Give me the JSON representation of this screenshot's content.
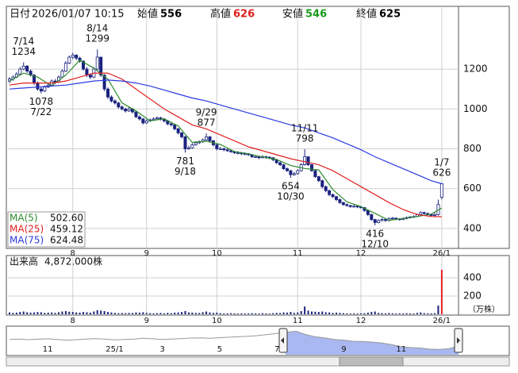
{
  "header": {
    "date_label": "日付",
    "date": "2026/01/07 10:15",
    "fields": [
      {
        "label": "始値",
        "value": 556,
        "color": "#000000"
      },
      {
        "label": "高値",
        "value": 626,
        "color": "#e02020"
      },
      {
        "label": "安値",
        "value": 546,
        "color": "#1a9a1a"
      },
      {
        "label": "終値",
        "value": 625,
        "color": "#000000"
      }
    ]
  },
  "chart_data": {
    "type": "candlestick",
    "categories": [
      null,
      null,
      null,
      null,
      null,
      null,
      null,
      null,
      null,
      null,
      null,
      null,
      null,
      null,
      null,
      null,
      null,
      null,
      "8",
      null,
      null,
      null,
      null,
      null,
      null,
      null,
      null,
      null,
      null,
      null,
      null,
      null,
      null,
      null,
      null,
      null,
      null,
      null,
      null,
      "9",
      null,
      null,
      null,
      null,
      null,
      null,
      null,
      null,
      null,
      null,
      null,
      null,
      null,
      null,
      null,
      null,
      null,
      null,
      null,
      "10",
      null,
      null,
      null,
      null,
      null,
      null,
      null,
      null,
      null,
      null,
      null,
      null,
      null,
      null,
      null,
      null,
      null,
      null,
      null,
      null,
      null,
      null,
      "11",
      null,
      null,
      null,
      null,
      null,
      null,
      null,
      null,
      null,
      null,
      null,
      null,
      null,
      null,
      null,
      null,
      null,
      "12",
      null,
      null,
      null,
      null,
      null,
      null,
      null,
      null,
      null,
      null,
      null,
      null,
      null,
      null,
      null,
      null,
      null,
      null,
      null,
      null,
      null,
      null,
      "26/1"
    ],
    "ohlc": [
      [
        1140,
        1160,
        1130,
        1150
      ],
      [
        1150,
        1168,
        1142,
        1160
      ],
      [
        1160,
        1185,
        1155,
        1175
      ],
      [
        1175,
        1210,
        1170,
        1200
      ],
      [
        1200,
        1234,
        1195,
        1215
      ],
      [
        1215,
        1220,
        1180,
        1190
      ],
      [
        1190,
        1198,
        1162,
        1170
      ],
      [
        1170,
        1175,
        1120,
        1130
      ],
      [
        1130,
        1138,
        1092,
        1100
      ],
      [
        1100,
        1112,
        1078,
        1090
      ],
      [
        1090,
        1118,
        1085,
        1110
      ],
      [
        1110,
        1130,
        1105,
        1120
      ],
      [
        1120,
        1148,
        1115,
        1140
      ],
      [
        1140,
        1150,
        1128,
        1135
      ],
      [
        1135,
        1168,
        1130,
        1160
      ],
      [
        1160,
        1198,
        1155,
        1190
      ],
      [
        1190,
        1240,
        1185,
        1230
      ],
      [
        1230,
        1268,
        1225,
        1260
      ],
      [
        1260,
        1282,
        1250,
        1270
      ],
      [
        1270,
        1275,
        1245,
        1255
      ],
      [
        1255,
        1262,
        1232,
        1240
      ],
      [
        1240,
        1245,
        1192,
        1200
      ],
      [
        1200,
        1210,
        1160,
        1170
      ],
      [
        1170,
        1178,
        1150,
        1160
      ],
      [
        1160,
        1210,
        1155,
        1200
      ],
      [
        1200,
        1299,
        1195,
        1260
      ],
      [
        1260,
        1262,
        1160,
        1170
      ],
      [
        1170,
        1175,
        1090,
        1100
      ],
      [
        1100,
        1108,
        1050,
        1060
      ],
      [
        1060,
        1068,
        1032,
        1040
      ],
      [
        1040,
        1048,
        1022,
        1030
      ],
      [
        1030,
        1035,
        1002,
        1010
      ],
      [
        1010,
        1018,
        992,
        1000
      ],
      [
        1000,
        1005,
        982,
        990
      ],
      [
        990,
        1012,
        985,
        1000
      ],
      [
        1000,
        1004,
        978,
        985
      ],
      [
        985,
        990,
        955,
        960
      ],
      [
        960,
        968,
        942,
        950
      ],
      [
        950,
        955,
        922,
        930
      ],
      [
        930,
        948,
        925,
        940
      ],
      [
        940,
        952,
        935,
        945
      ],
      [
        945,
        958,
        940,
        950
      ],
      [
        950,
        962,
        945,
        955
      ],
      [
        955,
        960,
        942,
        950
      ],
      [
        950,
        954,
        932,
        940
      ],
      [
        940,
        945,
        918,
        925
      ],
      [
        925,
        932,
        912,
        920
      ],
      [
        920,
        925,
        893,
        900
      ],
      [
        900,
        905,
        872,
        880
      ],
      [
        880,
        884,
        852,
        860
      ],
      [
        860,
        865,
        781,
        800
      ],
      [
        800,
        815,
        795,
        805
      ],
      [
        805,
        828,
        800,
        820
      ],
      [
        820,
        838,
        815,
        830
      ],
      [
        830,
        842,
        825,
        835
      ],
      [
        835,
        852,
        830,
        845
      ],
      [
        845,
        877,
        840,
        860
      ],
      [
        860,
        864,
        832,
        840
      ],
      [
        840,
        845,
        812,
        820
      ],
      [
        820,
        824,
        792,
        800
      ],
      [
        800,
        810,
        794,
        800
      ],
      [
        800,
        806,
        788,
        795
      ],
      [
        795,
        800,
        784,
        790
      ],
      [
        790,
        796,
        780,
        785
      ],
      [
        785,
        790,
        774,
        780
      ],
      [
        780,
        788,
        772,
        780
      ],
      [
        780,
        784,
        768,
        775
      ],
      [
        775,
        782,
        768,
        775
      ],
      [
        775,
        779,
        764,
        770
      ],
      [
        770,
        773,
        754,
        760
      ],
      [
        760,
        768,
        754,
        760
      ],
      [
        760,
        764,
        748,
        755
      ],
      [
        755,
        768,
        752,
        760
      ],
      [
        760,
        765,
        750,
        758
      ],
      [
        758,
        762,
        748,
        755
      ],
      [
        755,
        758,
        738,
        745
      ],
      [
        745,
        750,
        724,
        730
      ],
      [
        730,
        736,
        714,
        720
      ],
      [
        720,
        724,
        694,
        700
      ],
      [
        700,
        706,
        684,
        690
      ],
      [
        690,
        694,
        654,
        670
      ],
      [
        670,
        684,
        664,
        675
      ],
      [
        675,
        698,
        670,
        690
      ],
      [
        690,
        728,
        685,
        720
      ],
      [
        720,
        798,
        715,
        760
      ],
      [
        760,
        762,
        714,
        720
      ],
      [
        720,
        724,
        684,
        690
      ],
      [
        690,
        694,
        654,
        660
      ],
      [
        660,
        665,
        632,
        640
      ],
      [
        640,
        645,
        602,
        610
      ],
      [
        610,
        615,
        582,
        590
      ],
      [
        590,
        594,
        562,
        570
      ],
      [
        570,
        575,
        552,
        560
      ],
      [
        560,
        563,
        538,
        545
      ],
      [
        545,
        550,
        524,
        530
      ],
      [
        530,
        534,
        514,
        520
      ],
      [
        520,
        525,
        510,
        515
      ],
      [
        515,
        519,
        504,
        510
      ],
      [
        510,
        518,
        505,
        512
      ],
      [
        512,
        516,
        502,
        508
      ],
      [
        508,
        512,
        500,
        505
      ],
      [
        505,
        508,
        484,
        490
      ],
      [
        490,
        494,
        462,
        470
      ],
      [
        470,
        474,
        438,
        445
      ],
      [
        445,
        448,
        416,
        430
      ],
      [
        430,
        446,
        426,
        440
      ],
      [
        440,
        452,
        436,
        445
      ],
      [
        445,
        450,
        434,
        440
      ],
      [
        440,
        456,
        436,
        450
      ],
      [
        450,
        458,
        446,
        452
      ],
      [
        452,
        455,
        442,
        448
      ],
      [
        448,
        452,
        440,
        445
      ],
      [
        445,
        455,
        442,
        450
      ],
      [
        450,
        460,
        446,
        455
      ],
      [
        455,
        462,
        450,
        458
      ],
      [
        458,
        466,
        454,
        460
      ],
      [
        460,
        475,
        456,
        470
      ],
      [
        470,
        486,
        466,
        480
      ],
      [
        480,
        484,
        470,
        475
      ],
      [
        475,
        480,
        465,
        470
      ],
      [
        470,
        474,
        460,
        465
      ],
      [
        465,
        478,
        458,
        470
      ],
      [
        470,
        545,
        465,
        520
      ],
      [
        556,
        626,
        546,
        625
      ]
    ],
    "up_color": "#ffffff",
    "down_color": "#1a237e",
    "ylim": [
      300,
      1515
    ],
    "yticks": [
      400,
      600,
      800,
      1000,
      1200
    ],
    "grid": true,
    "annotations": [
      {
        "date": "7/14",
        "value": 1234,
        "side": "high"
      },
      {
        "date": "7/22",
        "value": 1078,
        "side": "low"
      },
      {
        "date": "8/14",
        "value": 1299,
        "side": "high"
      },
      {
        "date": "9/18",
        "value": 781,
        "side": "low"
      },
      {
        "date": "9/29",
        "value": 877,
        "side": "high"
      },
      {
        "date": "10/30",
        "value": 654,
        "side": "low"
      },
      {
        "date": "11/11",
        "value": 798,
        "side": "high"
      },
      {
        "date": "12/10",
        "value": 416,
        "side": "low"
      },
      {
        "date": "1/7",
        "value": 626,
        "side": "high"
      }
    ],
    "ma_x": [
      0,
      4,
      8,
      12,
      16,
      20,
      24,
      28,
      32,
      36,
      40,
      44,
      48,
      52,
      56,
      60,
      64,
      68,
      72,
      76,
      80,
      84,
      88,
      92,
      96,
      100,
      104,
      108,
      112,
      116,
      120,
      123
    ],
    "ma": [
      {
        "name": "MA(5)",
        "color": "#2e8b2e",
        "value_label": "502.60",
        "values": [
          1140,
          1180,
          1160,
          1115,
          1170,
          1245,
          1205,
          1150,
          1030,
          990,
          940,
          950,
          915,
          832,
          838,
          822,
          786,
          775,
          759,
          746,
          716,
          701,
          694,
          595,
          534,
          510,
          476,
          441,
          450,
          460,
          472,
          502.6
        ]
      },
      {
        "name": "MA(25)",
        "color": "#e02020",
        "value_label": "459.12",
        "values": [
          1120,
          1130,
          1130,
          1130,
          1140,
          1160,
          1180,
          1180,
          1150,
          1100,
          1050,
          1000,
          960,
          920,
          900,
          870,
          840,
          810,
          790,
          770,
          750,
          735,
          720,
          690,
          650,
          610,
          570,
          530,
          495,
          470,
          460,
          459.12
        ]
      },
      {
        "name": "MA(75)",
        "color": "#2a3ae0",
        "value_label": "624.48",
        "values": [
          1100,
          1105,
          1110,
          1115,
          1120,
          1130,
          1140,
          1145,
          1140,
          1130,
          1115,
          1095,
          1075,
          1055,
          1040,
          1020,
          1000,
          980,
          960,
          940,
          920,
          905,
          880,
          855,
          825,
          795,
          760,
          730,
          700,
          670,
          640,
          624.48
        ]
      }
    ],
    "volume": {
      "title": "出来高",
      "current_label": "4,872,000株",
      "unit": "（万株）",
      "color": "#1a237e",
      "latest_color": "#e02020",
      "values": [
        20,
        15,
        18,
        25,
        30,
        22,
        18,
        20,
        25,
        22,
        15,
        18,
        20,
        15,
        22,
        30,
        35,
        28,
        25,
        20,
        18,
        25,
        22,
        18,
        30,
        45,
        40,
        35,
        25,
        20,
        15,
        12,
        14,
        12,
        15,
        14,
        20,
        18,
        22,
        15,
        12,
        10,
        12,
        14,
        10,
        15,
        12,
        18,
        20,
        25,
        35,
        20,
        18,
        15,
        14,
        22,
        30,
        20,
        15,
        18,
        12,
        10,
        10,
        12,
        10,
        8,
        10,
        8,
        10,
        12,
        10,
        8,
        12,
        10,
        8,
        12,
        15,
        14,
        20,
        18,
        25,
        15,
        20,
        35,
        85,
        40,
        30,
        28,
        25,
        30,
        22,
        20,
        15,
        18,
        15,
        12,
        10,
        8,
        10,
        8,
        10,
        12,
        18,
        25,
        30,
        15,
        12,
        10,
        14,
        10,
        8,
        10,
        8,
        12,
        10,
        8,
        15,
        20,
        12,
        10,
        10,
        12,
        95,
        487.2
      ],
      "ylim": [
        0,
        643
      ],
      "yticks": [
        200,
        400
      ]
    },
    "navigator": {
      "categories": [
        null,
        null,
        null,
        null,
        "11",
        null,
        null,
        null,
        null,
        null,
        null,
        "25/1",
        null,
        null,
        null,
        null,
        "3",
        null,
        null,
        null,
        null,
        null,
        "5",
        null,
        null,
        null,
        null,
        null,
        "7",
        null,
        null,
        null,
        null,
        null,
        null,
        "9",
        null,
        null,
        null,
        null,
        null,
        "11",
        null,
        null,
        null,
        null,
        null,
        null
      ],
      "values": [
        880,
        900,
        870,
        890,
        910,
        880,
        850,
        870,
        900,
        920,
        890,
        860,
        880,
        900,
        930,
        910,
        880,
        900,
        920,
        940,
        950,
        930,
        960,
        980,
        1000,
        1020,
        1050,
        1100,
        1150,
        1200,
        1250,
        1100,
        1000,
        950,
        880,
        850,
        800,
        790,
        760,
        720,
        650,
        560,
        520,
        500,
        450,
        440,
        470,
        600
      ],
      "ylim": [
        200,
        1400
      ],
      "line_color": "#999999",
      "fill_color": "#a9b8f0"
    }
  }
}
